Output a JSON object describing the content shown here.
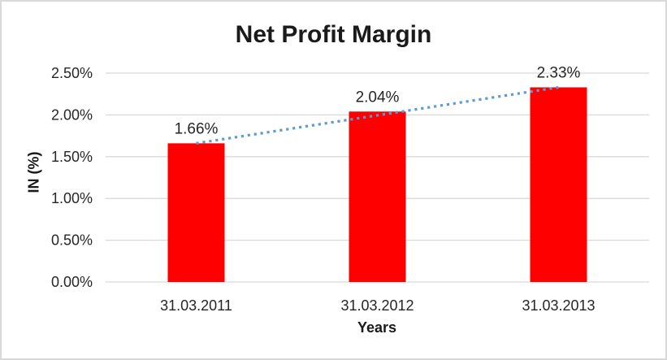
{
  "chart_data": {
    "type": "bar",
    "title": "Net Profit Margin",
    "xlabel": "Years",
    "ylabel": "IN (%)",
    "categories": [
      "31.03.2011",
      "31.03.2012",
      "31.03.2013"
    ],
    "series": [
      {
        "name": "Net Profit Margin",
        "values": [
          1.66,
          2.04,
          2.33
        ]
      }
    ],
    "data_labels": [
      "1.66%",
      "2.04%",
      "2.33%"
    ],
    "y_ticks": [
      {
        "label": "0.00%",
        "value": 0.0
      },
      {
        "label": "0.50%",
        "value": 0.5
      },
      {
        "label": "1.00%",
        "value": 1.0
      },
      {
        "label": "1.50%",
        "value": 1.5
      },
      {
        "label": "2.00%",
        "value": 2.0
      },
      {
        "label": "2.50%",
        "value": 2.5
      }
    ],
    "ylim": [
      0,
      2.5
    ],
    "grid": true,
    "legend": "none",
    "trendline": {
      "type": "linear",
      "style": "dotted"
    },
    "colors": {
      "bar": "#ff0000",
      "trendline": "#5b9bd5",
      "gridline": "#d9d9d9",
      "axis_text": "#262626",
      "title_text": "#1a1a1a",
      "frame_border": "#d9d9d9",
      "background": "#ffffff"
    }
  }
}
